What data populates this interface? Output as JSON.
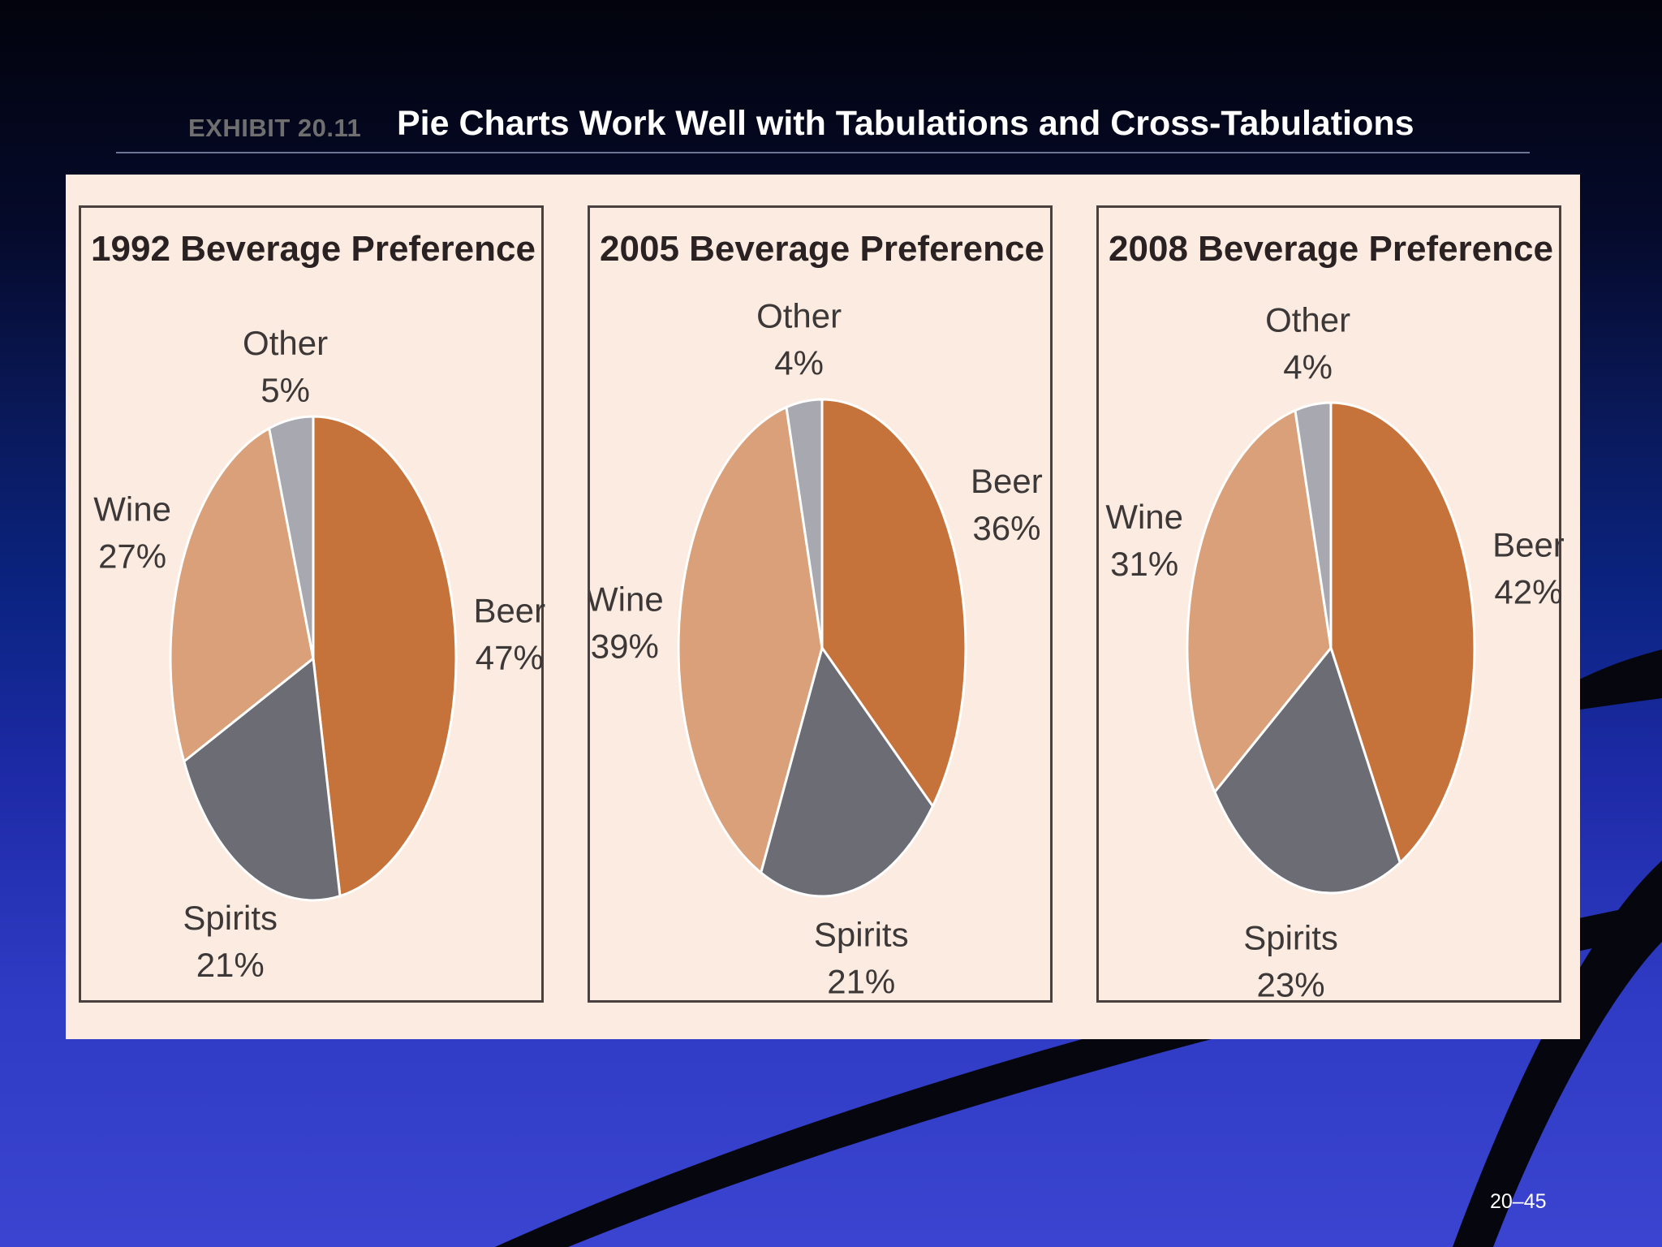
{
  "header": {
    "exhibit": "EXHIBIT 20.11",
    "title": "Pie Charts Work Well with Tabulations and Cross-Tabulations"
  },
  "footer": {
    "page_number": "20–45"
  },
  "colors": {
    "Beer": "#c5733a",
    "Spirits": "#6c6c74",
    "Wine": "#d9a07a",
    "Other": "#a8a8b0",
    "figure_background": "#fcebe0"
  },
  "chart_data": [
    {
      "type": "pie",
      "title": "1992 Beverage Preference",
      "categories": [
        "Beer",
        "Spirits",
        "Wine",
        "Other"
      ],
      "values": [
        47,
        21,
        27,
        5
      ],
      "labels": [
        "47%",
        "21%",
        "27%",
        "5%"
      ]
    },
    {
      "type": "pie",
      "title": "2005 Beverage Preference",
      "categories": [
        "Beer",
        "Spirits",
        "Wine",
        "Other"
      ],
      "values": [
        36,
        21,
        39,
        4
      ],
      "labels": [
        "36%",
        "21%",
        "39%",
        "4%"
      ]
    },
    {
      "type": "pie",
      "title": "2008 Beverage Preference",
      "categories": [
        "Beer",
        "Spirits",
        "Wine",
        "Other"
      ],
      "values": [
        42,
        23,
        31,
        4
      ],
      "labels": [
        "42%",
        "23%",
        "31%",
        "4%"
      ]
    }
  ]
}
